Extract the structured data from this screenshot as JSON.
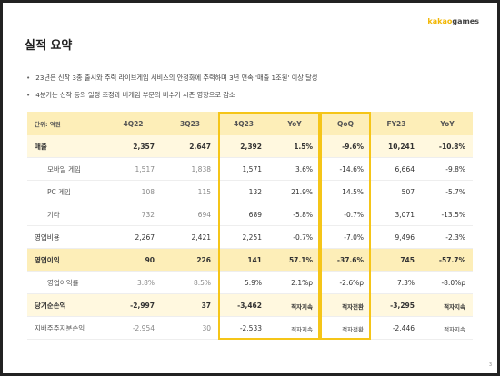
{
  "logo": {
    "brand": "kakao",
    "suffix": "games"
  },
  "title": "실적 요약",
  "bullets": [
    "23년은 신작 3종 출시와 주력 라이브게임 서비스의 안정화에 주력하며 3년 연속 '매출 1조원' 이상 달성",
    "4분기는 신작 등의 일정 조정과 비게임 부문의 비수기 시즌 영향으로 감소"
  ],
  "table": {
    "header": [
      "단위: 억원",
      "4Q22",
      "3Q23",
      "4Q23",
      "YoY",
      "QoQ",
      "FY23",
      "YoY"
    ],
    "rows": [
      [
        "매출",
        "2,357",
        "2,647",
        "2,392",
        "1.5%",
        "-9.6%",
        "10,241",
        "-10.8%"
      ],
      [
        "모바일 게임",
        "1,517",
        "1,838",
        "1,571",
        "3.6%",
        "-14.6%",
        "6,664",
        "-9.8%"
      ],
      [
        "PC 게임",
        "108",
        "115",
        "132",
        "21.9%",
        "14.5%",
        "507",
        "-5.7%"
      ],
      [
        "기타",
        "732",
        "694",
        "689",
        "-5.8%",
        "-0.7%",
        "3,071",
        "-13.5%"
      ],
      [
        "영업비용",
        "2,267",
        "2,421",
        "2,251",
        "-0.7%",
        "-7.0%",
        "9,496",
        "-2.3%"
      ],
      [
        "영업이익",
        "90",
        "226",
        "141",
        "57.1%",
        "-37.6%",
        "745",
        "-57.7%"
      ],
      [
        "영업이익률",
        "3.8%",
        "8.5%",
        "5.9%",
        "2.1%p",
        "-2.6%p",
        "7.3%",
        "-8.0%p"
      ],
      [
        "당기순손익",
        "-2,997",
        "37",
        "-3,462",
        "적자지속",
        "적자전환",
        "-3,295",
        "적자지속"
      ],
      [
        "지배주주지분손익",
        "-2,954",
        "30",
        "-2,533",
        "적자지속",
        "적자전환",
        "-2,446",
        "적자지속"
      ]
    ]
  },
  "page_number": "3"
}
